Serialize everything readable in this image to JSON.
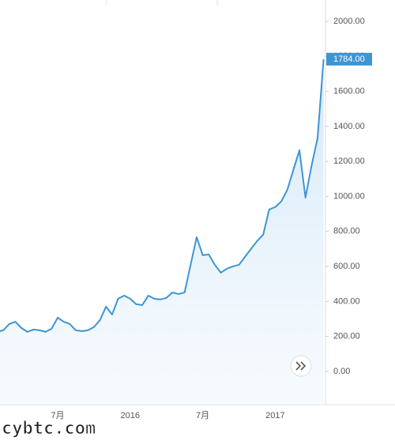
{
  "chart_data": {
    "type": "area",
    "categories": [
      null,
      null,
      null,
      null,
      null,
      null,
      null,
      null,
      null,
      null,
      "7月",
      null,
      null,
      null,
      null,
      null,
      null,
      null,
      null,
      null,
      null,
      null,
      "2016",
      null,
      null,
      null,
      null,
      null,
      null,
      null,
      null,
      null,
      null,
      null,
      "7月",
      null,
      null,
      null,
      null,
      null,
      null,
      null,
      null,
      null,
      null,
      null,
      "2017",
      null,
      null,
      null,
      null,
      null,
      null,
      null,
      null
    ],
    "values": [
      226,
      235,
      271,
      284,
      248,
      226,
      239,
      235,
      226,
      244,
      307,
      284,
      271,
      235,
      230,
      235,
      253,
      293,
      370,
      325,
      415,
      433,
      415,
      384,
      379,
      433,
      415,
      411,
      420,
      451,
      442,
      451,
      609,
      767,
      664,
      668,
      609,
      564,
      587,
      600,
      609,
      655,
      700,
      745,
      781,
      925,
      939,
      971,
      1038,
      1151,
      1264,
      993,
      1174,
      1332,
      1784
    ],
    "last_label": "1784.00",
    "color": "#3d95d3",
    "ylim": [
      -181,
      2086
    ],
    "yticks": [
      {
        "value": 0,
        "label": "0.00"
      },
      {
        "value": 200,
        "label": "200.00"
      },
      {
        "value": 400,
        "label": "400.00"
      },
      {
        "value": 600,
        "label": "600.00"
      },
      {
        "value": 800,
        "label": "800.00"
      },
      {
        "value": 1000,
        "label": "1000.00"
      },
      {
        "value": 1200,
        "label": "1200.00"
      },
      {
        "value": 1400,
        "label": "1400.00"
      },
      {
        "value": 1600,
        "label": "1600.00"
      },
      {
        "value": 1800,
        "label": "1800.00"
      },
      {
        "value": 2000,
        "label": "2000.00"
      }
    ],
    "watermark": "cybtc.com"
  }
}
